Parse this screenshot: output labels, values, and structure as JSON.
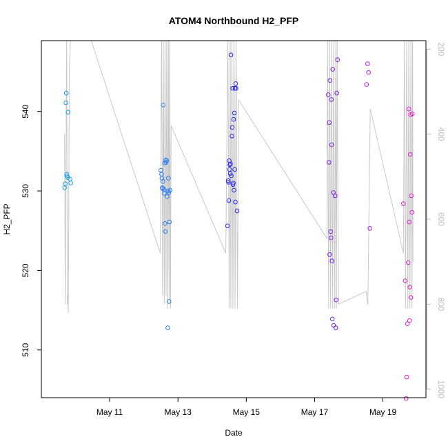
{
  "chart_data": {
    "type": "scatter",
    "title": "ATOM4 Northbound H2_PFP",
    "xlabel": "Date",
    "ylabel": "H2_PFP",
    "x_unit": "day of May",
    "xlim": [
      9.0,
      20.26
    ],
    "ylim": [
      504.0,
      548.9
    ],
    "x_ticks": [
      {
        "value": 11,
        "label": "May 11"
      },
      {
        "value": 13,
        "label": "May 13"
      },
      {
        "value": 15,
        "label": "May 15"
      },
      {
        "value": 17,
        "label": "May 17"
      },
      {
        "value": 19,
        "label": "May 19"
      }
    ],
    "y_ticks": [
      510,
      520,
      530,
      540
    ],
    "secondary_axis": {
      "side": "right",
      "label": "",
      "ticks": [
        200,
        400,
        600,
        800,
        1000
      ],
      "range": [
        180,
        1020
      ],
      "inverted": true,
      "color": "#bdbdbd"
    },
    "grid": false,
    "legend": "none",
    "point_colors": [
      "#1ea0e6",
      "#2e7df0",
      "#2626e6",
      "#7a1ee6",
      "#b020ea",
      "#e61ec8"
    ],
    "line_color": "#c8c8c8",
    "series": [
      {
        "color_index": 0,
        "points": [
          [
            9.68,
            530.4
          ],
          [
            9.7,
            530.9
          ],
          [
            9.72,
            541.1
          ],
          [
            9.73,
            542.3
          ],
          [
            9.74,
            532.1
          ],
          [
            9.75,
            531.9
          ],
          [
            9.77,
            531.7
          ],
          [
            9.78,
            539.9
          ],
          [
            9.84,
            531.5
          ],
          [
            9.86,
            531.0
          ]
        ]
      },
      {
        "color_index": 1,
        "points": [
          [
            12.5,
            532.6
          ],
          [
            12.52,
            532.1
          ],
          [
            12.53,
            531.6
          ],
          [
            12.54,
            530.4
          ],
          [
            12.55,
            530.3
          ],
          [
            12.56,
            531.2
          ],
          [
            12.57,
            540.8
          ],
          [
            12.59,
            530.2
          ],
          [
            12.6,
            529.7
          ],
          [
            12.61,
            533.5
          ],
          [
            12.62,
            525.9
          ],
          [
            12.63,
            524.9
          ],
          [
            12.64,
            533.9
          ],
          [
            12.65,
            533.6
          ],
          [
            12.67,
            533.8
          ],
          [
            12.68,
            529.3
          ],
          [
            12.7,
            512.8
          ],
          [
            12.71,
            530.0
          ],
          [
            12.72,
            531.6
          ],
          [
            12.73,
            529.8
          ],
          [
            12.74,
            516.1
          ],
          [
            12.75,
            526.1
          ],
          [
            12.77,
            530.1
          ]
        ]
      },
      {
        "color_index": 2,
        "points": [
          [
            14.45,
            525.6
          ],
          [
            14.47,
            531.3
          ],
          [
            14.48,
            531.1
          ],
          [
            14.49,
            528.8
          ],
          [
            14.5,
            533.8
          ],
          [
            14.51,
            532.7
          ],
          [
            14.52,
            533.3
          ],
          [
            14.53,
            532.2
          ],
          [
            14.54,
            533.4
          ],
          [
            14.55,
            547.1
          ],
          [
            14.56,
            531.9
          ],
          [
            14.58,
            536.9
          ],
          [
            14.59,
            538.0
          ],
          [
            14.6,
            542.9
          ],
          [
            14.61,
            530.8
          ],
          [
            14.62,
            531.0
          ],
          [
            14.63,
            539.0
          ],
          [
            14.64,
            530.1
          ],
          [
            14.65,
            539.8
          ],
          [
            14.66,
            532.7
          ],
          [
            14.67,
            542.9
          ],
          [
            14.68,
            528.6
          ],
          [
            14.69,
            543.5
          ],
          [
            14.7,
            542.9
          ],
          [
            14.73,
            527.5
          ]
        ]
      },
      {
        "color_index": 3,
        "points": [
          [
            17.4,
            542.1
          ],
          [
            17.42,
            533.6
          ],
          [
            17.43,
            538.6
          ],
          [
            17.44,
            522.0
          ],
          [
            17.45,
            543.9
          ],
          [
            17.47,
            524.9
          ],
          [
            17.48,
            524.1
          ],
          [
            17.49,
            541.5
          ],
          [
            17.5,
            535.8
          ],
          [
            17.51,
            521.2
          ],
          [
            17.52,
            513.9
          ],
          [
            17.53,
            545.3
          ],
          [
            17.55,
            529.8
          ],
          [
            17.56,
            513.1
          ],
          [
            17.6,
            529.4
          ],
          [
            17.62,
            512.8
          ],
          [
            17.63,
            516.3
          ],
          [
            17.65,
            542.3
          ],
          [
            17.67,
            546.5
          ]
        ]
      },
      {
        "color_index": 4,
        "points": [
          [
            18.52,
            543.4
          ],
          [
            18.55,
            546.0
          ],
          [
            18.58,
            544.9
          ],
          [
            18.62,
            525.3
          ]
        ]
      },
      {
        "color_index": 5,
        "points": [
          [
            19.6,
            528.4
          ],
          [
            19.65,
            518.7
          ],
          [
            19.68,
            503.9
          ],
          [
            19.7,
            506.6
          ],
          [
            19.72,
            513.3
          ],
          [
            19.74,
            521.0
          ],
          [
            19.76,
            540.3
          ],
          [
            19.77,
            526.1
          ],
          [
            19.78,
            513.7
          ],
          [
            19.79,
            517.9
          ],
          [
            19.8,
            534.6
          ],
          [
            19.81,
            539.6
          ],
          [
            19.82,
            516.6
          ],
          [
            19.83,
            529.4
          ],
          [
            19.85,
            527.3
          ],
          [
            19.86,
            539.7
          ]
        ]
      }
    ],
    "line_series": {
      "name": "",
      "axis": "right",
      "points": [
        [
          9.68,
          400
        ],
        [
          9.7,
          800
        ],
        [
          9.74,
          170
        ],
        [
          9.76,
          800
        ],
        [
          9.77,
          780
        ],
        [
          9.79,
          820
        ],
        [
          9.82,
          250
        ],
        [
          9.85,
          180
        ],
        [
          9.88,
          170
        ],
        [
          10.42,
          170
        ],
        [
          12.48,
          680
        ],
        [
          12.52,
          170
        ],
        [
          12.55,
          780
        ],
        [
          12.57,
          170
        ],
        [
          12.6,
          800
        ],
        [
          12.62,
          170
        ],
        [
          12.65,
          780
        ],
        [
          12.67,
          170
        ],
        [
          12.7,
          810
        ],
        [
          12.72,
          170
        ],
        [
          12.74,
          790
        ],
        [
          12.76,
          170
        ],
        [
          12.78,
          810
        ],
        [
          12.8,
          380
        ],
        [
          14.4,
          680
        ],
        [
          14.46,
          170
        ],
        [
          14.5,
          810
        ],
        [
          14.53,
          170
        ],
        [
          14.55,
          810
        ],
        [
          14.58,
          170
        ],
        [
          14.61,
          810
        ],
        [
          14.64,
          170
        ],
        [
          14.67,
          810
        ],
        [
          14.7,
          170
        ],
        [
          14.74,
          810
        ],
        [
          14.78,
          320
        ],
        [
          17.36,
          645
        ],
        [
          17.38,
          180
        ],
        [
          17.41,
          810
        ],
        [
          17.44,
          180
        ],
        [
          17.47,
          810
        ],
        [
          17.5,
          180
        ],
        [
          17.53,
          810
        ],
        [
          17.56,
          180
        ],
        [
          17.59,
          810
        ],
        [
          17.62,
          180
        ],
        [
          17.64,
          810
        ],
        [
          17.66,
          180
        ],
        [
          17.7,
          800
        ],
        [
          18.51,
          770
        ],
        [
          18.55,
          800
        ],
        [
          18.56,
          800
        ],
        [
          18.63,
          340
        ],
        [
          19.6,
          680
        ],
        [
          19.63,
          170
        ],
        [
          19.66,
          810
        ],
        [
          19.7,
          170
        ],
        [
          19.73,
          810
        ],
        [
          19.76,
          170
        ],
        [
          19.79,
          810
        ],
        [
          19.82,
          170
        ],
        [
          19.85,
          810
        ],
        [
          19.87,
          170
        ],
        [
          19.88,
          700
        ]
      ]
    }
  }
}
